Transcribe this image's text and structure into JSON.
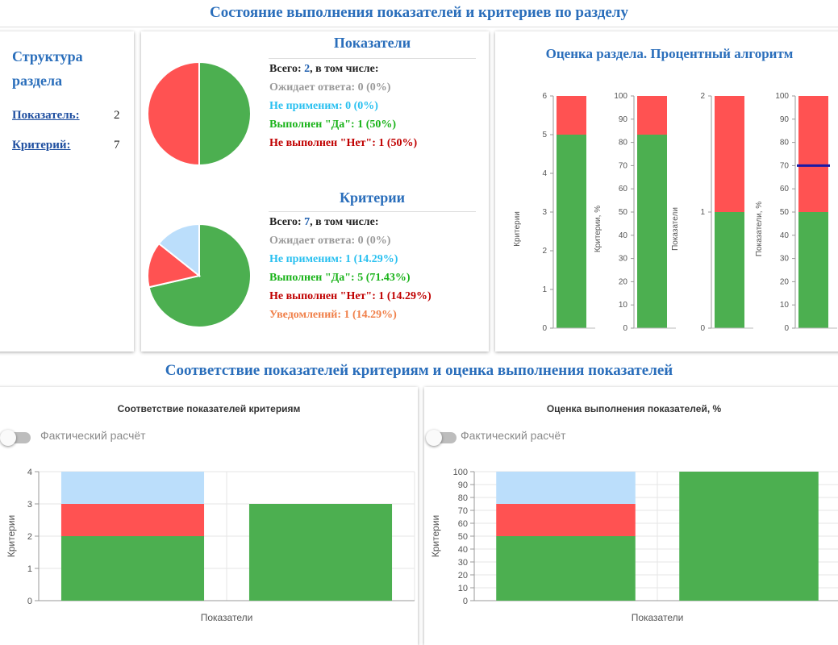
{
  "header": {
    "title": "Состояние выполнения показателей и критериев по разделу",
    "section2_title": "Соответствие показателей критериям и оценка выполнения показателей"
  },
  "structure": {
    "title_line1": "Структура",
    "title_line2": "раздела",
    "indicator_label": "Показатель:",
    "indicator_value": "2",
    "criterion_label": "Критерий:",
    "criterion_value": "7"
  },
  "indicators": {
    "title": "Показатели",
    "total_prefix": "Всего: ",
    "total_value": "2",
    "total_suffix": ", в том числе:",
    "pending": "Ожидает ответа: 0 (0%)",
    "not_applicable": "Не применим: 0 (0%)",
    "done_yes": "Выполнен \"Да\": 1 (50%)",
    "not_done": "Не выполнен \"Нет\": 1 (50%)",
    "pie": [
      {
        "label": "Выполнен",
        "value": 1,
        "color": "#4caf50"
      },
      {
        "label": "Не выполнен",
        "value": 1,
        "color": "#ff5252"
      }
    ]
  },
  "criteria": {
    "title": "Критерии",
    "total_prefix": "Всего: ",
    "total_value": "7",
    "total_suffix": ", в том числе:",
    "pending": "Ожидает ответа: 0 (0%)",
    "not_applicable": "Не применим: 1 (14.29%)",
    "done_yes": "Выполнен \"Да\": 5 (71.43%)",
    "not_done": "Не выполнен \"Нет\": 1 (14.29%)",
    "notifications": "Уведомлений: 1 (14.29%)",
    "pie": [
      {
        "label": "Выполнен",
        "value": 5,
        "color": "#4caf50"
      },
      {
        "label": "Не выполнен",
        "value": 1,
        "color": "#ff5252"
      },
      {
        "label": "Не применим",
        "value": 1,
        "color": "#bbdefb"
      }
    ]
  },
  "assessment": {
    "title": "Оценка раздела. Процентный алгоритм"
  },
  "colors": {
    "green": "#4caf50",
    "red": "#ff5252",
    "light_blue": "#bbdefb",
    "threshold_line": "#1a1aa6",
    "title_blue": "#2a6ebb"
  },
  "left_chart": {
    "title": "Соответствие показателей критериям",
    "toggle_label": "Фактический расчёт"
  },
  "right_chart": {
    "title": "Оценка выполнения показателей, %",
    "toggle_label": "Фактический расчёт"
  },
  "chart_data": [
    {
      "type": "bar",
      "ylabel": "Критерии",
      "ylim": [
        0,
        6
      ],
      "yticks": [
        0,
        1,
        2,
        3,
        4,
        5,
        6
      ],
      "series": [
        {
          "values": [
            5
          ],
          "color": "#4caf50"
        },
        {
          "values": [
            1
          ],
          "color": "#ff5252"
        }
      ]
    },
    {
      "type": "bar",
      "ylabel": "Критерии, %",
      "ylim": [
        0,
        100
      ],
      "yticks": [
        0,
        10,
        20,
        30,
        40,
        50,
        60,
        70,
        80,
        90,
        100
      ],
      "series": [
        {
          "values": [
            83.33
          ],
          "color": "#4caf50"
        },
        {
          "values": [
            16.67
          ],
          "color": "#ff5252"
        }
      ]
    },
    {
      "type": "bar",
      "ylabel": "Показатели",
      "ylim": [
        0,
        2
      ],
      "yticks": [
        0,
        1,
        2
      ],
      "series": [
        {
          "values": [
            1
          ],
          "color": "#4caf50"
        },
        {
          "values": [
            1
          ],
          "color": "#ff5252"
        }
      ]
    },
    {
      "type": "bar",
      "ylabel": "Показатели, %",
      "ylim": [
        0,
        100
      ],
      "yticks": [
        0,
        10,
        20,
        30,
        40,
        50,
        60,
        70,
        80,
        90,
        100
      ],
      "series": [
        {
          "values": [
            50
          ],
          "color": "#4caf50"
        },
        {
          "values": [
            50
          ],
          "color": "#ff5252"
        }
      ],
      "threshold": 70
    },
    {
      "type": "bar",
      "title": "Соответствие показателей критериям",
      "xlabel": "Показатели",
      "ylabel": "Критерии",
      "ylim": [
        0,
        4
      ],
      "yticks": [
        0,
        1,
        2,
        3,
        4
      ],
      "series": [
        {
          "values": [
            2,
            3
          ],
          "color": "#4caf50"
        },
        {
          "values": [
            1,
            0
          ],
          "color": "#ff5252"
        },
        {
          "values": [
            1,
            0
          ],
          "color": "#bbdefb"
        }
      ]
    },
    {
      "type": "bar",
      "title": "Оценка выполнения показателей, %",
      "xlabel": "Показатели",
      "ylabel": "Критерии",
      "ylim": [
        0,
        100
      ],
      "yticks": [
        0,
        10,
        20,
        30,
        40,
        50,
        60,
        70,
        80,
        90,
        100
      ],
      "series": [
        {
          "values": [
            50,
            100
          ],
          "color": "#4caf50"
        },
        {
          "values": [
            25,
            0
          ],
          "color": "#ff5252"
        },
        {
          "values": [
            25,
            0
          ],
          "color": "#bbdefb"
        }
      ]
    }
  ]
}
